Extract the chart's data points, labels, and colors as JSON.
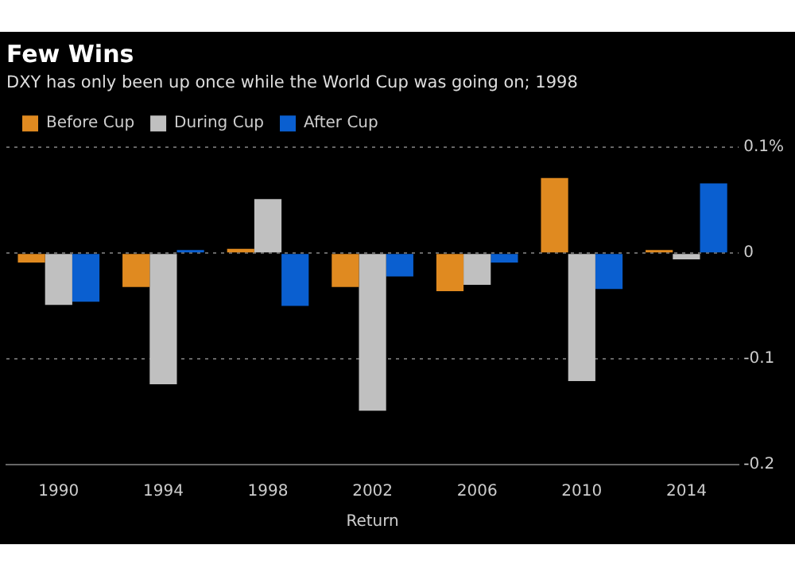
{
  "chart_data": {
    "type": "bar",
    "title": "Few Wins",
    "subtitle": "DXY has only been up once while the World Cup was going on; 1998",
    "xlabel": "Return",
    "categories": [
      "1990",
      "1994",
      "1998",
      "2002",
      "2006",
      "2010",
      "2014"
    ],
    "series": [
      {
        "name": "Before Cup",
        "color": "#e08a20",
        "values": [
          -0.009,
          -0.032,
          0.004,
          -0.032,
          -0.036,
          0.071,
          0.003
        ]
      },
      {
        "name": "During Cup",
        "color": "#c0c0c0",
        "values": [
          -0.049,
          -0.124,
          0.051,
          -0.149,
          -0.03,
          -0.121,
          -0.006
        ]
      },
      {
        "name": "After Cup",
        "color": "#0a5fd0",
        "values": [
          -0.046,
          0.003,
          -0.05,
          -0.022,
          -0.009,
          -0.034,
          0.066
        ]
      }
    ],
    "ylim": [
      -0.2,
      0.1
    ],
    "yticks": [
      {
        "value": 0.1,
        "label": "0.1%"
      },
      0,
      -0.1,
      -0.2
    ],
    "grid": "y",
    "legend": "top left"
  }
}
